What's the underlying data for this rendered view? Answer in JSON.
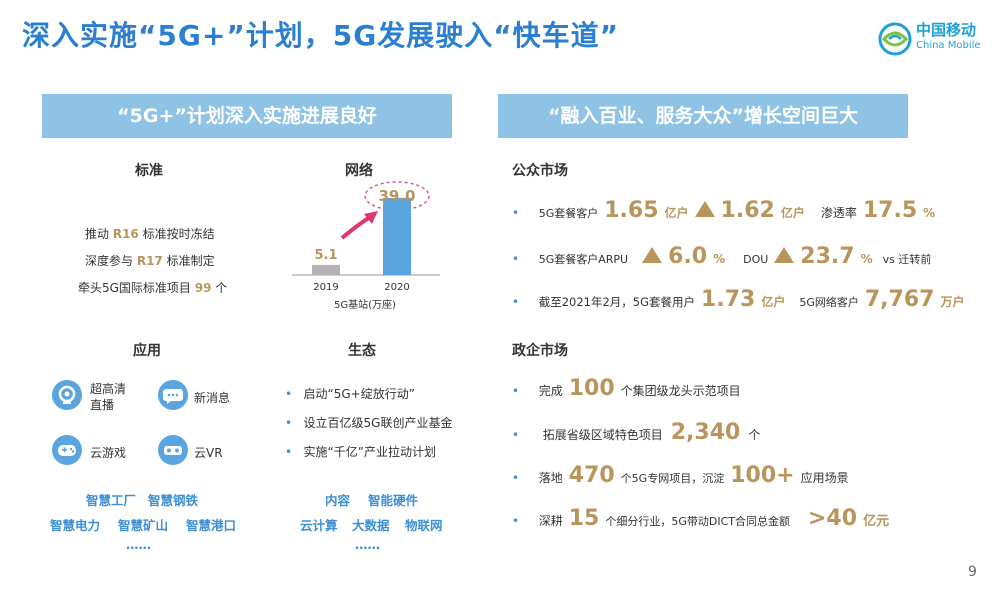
{
  "title": "深入实施“5G+”计划，5G发展驶入“快车道”",
  "logo": {
    "cn": "中国移动",
    "en": "China Mobile"
  },
  "left": {
    "banner": "“5G+”计划深入实施进展良好",
    "standard": {
      "heading": "标准",
      "line1": {
        "pre": "推动 ",
        "tag": "R16",
        "post": " 标准按时冻结"
      },
      "line2": {
        "pre": "深度参与 ",
        "tag": "R17",
        "post": " 标准制定"
      },
      "line3": {
        "pre": "牵头5G国际标准项目 ",
        "tag": "99",
        "post": " 个"
      }
    },
    "network": {
      "heading": "网络",
      "chart_caption": "5G基站(万座)"
    },
    "apps": {
      "heading": "应用",
      "items": [
        "超高清\n直播",
        "新消息",
        "云游戏",
        "云VR"
      ],
      "tags": [
        "智慧工厂",
        "智慧钢铁",
        "智慧电力",
        "智慧矿山",
        "智慧港口",
        "……"
      ]
    },
    "eco": {
      "heading": "生态",
      "items": [
        "启动“5G+绽放行动”",
        "设立百亿级5G联创产业基金",
        "实施“千亿”产业拉动计划"
      ],
      "tags": [
        "内容",
        "智能硬件",
        "云计算",
        "大数据",
        "物联网",
        "……"
      ]
    }
  },
  "right": {
    "banner": "“融入百业、服务大众”增长空间巨大",
    "public": {
      "heading": "公众市场",
      "r1": {
        "a": "5G套餐客户",
        "n1": "1.65",
        "u1": "亿户",
        "n2": "1.62",
        "u2": "亿户",
        "b": "渗透率",
        "n3": "17.5",
        "u3": "%"
      },
      "r2": {
        "a": "5G套餐客户ARPU",
        "n1": "6.0",
        "u1": "%",
        "b": "DOU",
        "n2": "23.7",
        "u2": "%",
        "c": "vs 迁转前"
      },
      "r3": {
        "a": "截至2021年2月，5G套餐用户",
        "n1": "1.73",
        "u1": "亿户",
        "b": "5G网络客户",
        "n2": "7,767",
        "u2": "万户"
      }
    },
    "gov": {
      "heading": "政企市场",
      "r1": {
        "a": "完成",
        "n": "100",
        "b": "个集团级龙头示范项目"
      },
      "r2": {
        "a": "拓展省级区域特色项目",
        "n": "2,340",
        "b": "个"
      },
      "r3": {
        "a": "落地",
        "n1": "470",
        "b": "个5G专网项目，沉淀",
        "n2": "100+",
        "c": "应用场景"
      },
      "r4": {
        "a": "深耕",
        "n1": "15",
        "b": "个细分行业，5G带动DICT合同总金额",
        "n2": ">40",
        "c": "亿元"
      }
    }
  },
  "page_number": "9",
  "chart_data": {
    "type": "bar",
    "categories": [
      "2019",
      "2020"
    ],
    "values": [
      5.1,
      39.0
    ],
    "value_labels": [
      "5.1",
      "39.0"
    ],
    "xlabel": "5G基站(万座)",
    "ylabel": "",
    "ylim": [
      0,
      45
    ],
    "colors": [
      "#b3b3b3",
      "#5aa4df"
    ],
    "grid": false
  }
}
